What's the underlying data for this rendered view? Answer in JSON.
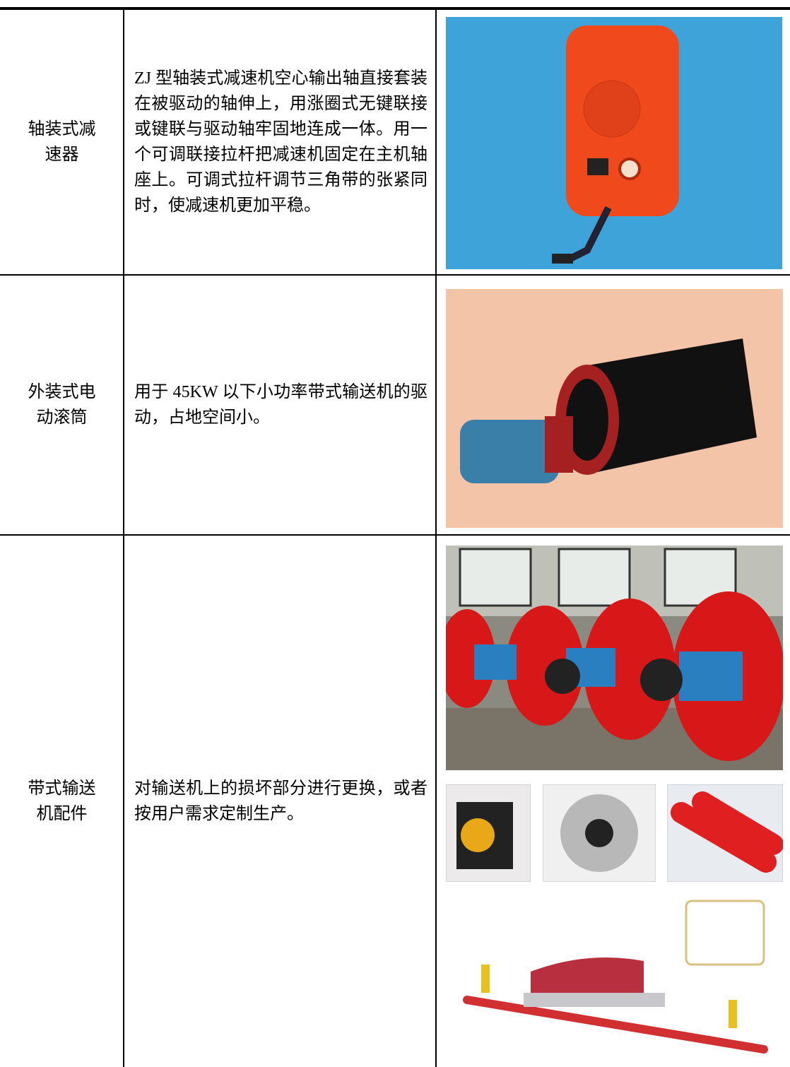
{
  "table": {
    "rows": [
      {
        "name": "轴装式减速器",
        "description": "ZJ 型轴装式减速机空心输出轴直接套装在被驱动的轴伸上，用涨圈式无键联接或键联与驱动轴牢固地连成一体。用一个可调联接拉杆把减速机固定在主机轴座上。可调式拉杆调节三角带的张紧同时，使减速机更加平稳。"
      },
      {
        "name": "外装式电动滚筒",
        "description": "用于 45KW 以下小功率带式输送机的驱动，占地空间小。"
      },
      {
        "name": "带式输送机配件",
        "description": "对输送机上的损坏部分进行更换，或者按用户需求定制生产。"
      }
    ]
  }
}
